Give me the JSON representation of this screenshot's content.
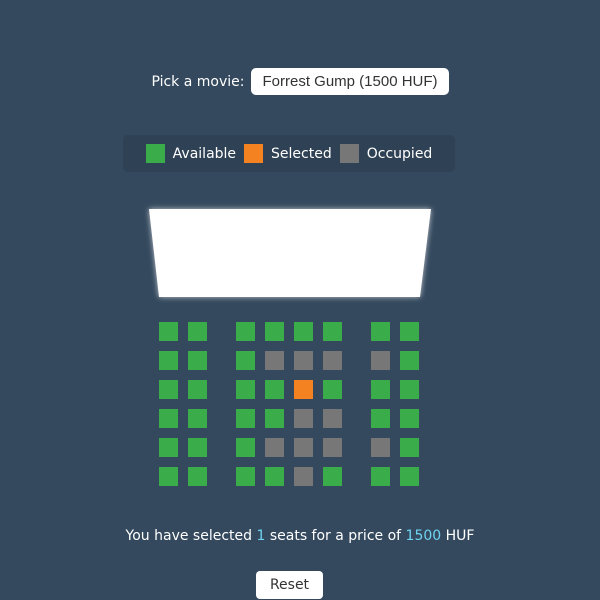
{
  "picker": {
    "label": "Pick a movie:",
    "selected": "Forrest Gump (1500 HUF)"
  },
  "legend": [
    {
      "label": "Available",
      "color": "#3aac4a"
    },
    {
      "label": "Selected",
      "color": "#f58220"
    },
    {
      "label": "Occupied",
      "color": "#777777"
    }
  ],
  "colors": {
    "available": "#3aac4a",
    "selected": "#f58220",
    "occupied": "#777777",
    "highlight": "#6fd3f0",
    "background": "#34495e"
  },
  "seats": [
    [
      "available",
      "available",
      "available",
      "available",
      "available",
      "available",
      "available",
      "available"
    ],
    [
      "available",
      "available",
      "available",
      "occupied",
      "occupied",
      "occupied",
      "occupied",
      "available"
    ],
    [
      "available",
      "available",
      "available",
      "available",
      "selected",
      "available",
      "available",
      "available"
    ],
    [
      "available",
      "available",
      "available",
      "available",
      "occupied",
      "occupied",
      "available",
      "available"
    ],
    [
      "available",
      "available",
      "available",
      "occupied",
      "occupied",
      "occupied",
      "occupied",
      "available"
    ],
    [
      "available",
      "available",
      "available",
      "available",
      "occupied",
      "available",
      "available",
      "available"
    ]
  ],
  "summary": {
    "prefix": "You have selected ",
    "count": "1",
    "middle": " seats for a price of ",
    "price": "1500",
    "suffix": " HUF"
  },
  "reset_label": "Reset"
}
